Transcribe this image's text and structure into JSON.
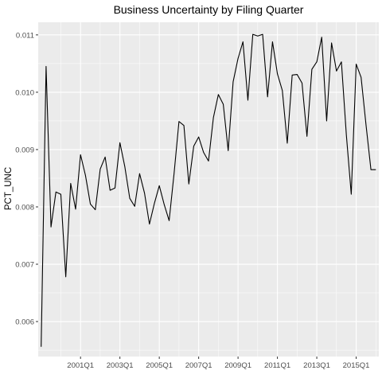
{
  "chart_data": {
    "type": "line",
    "title": "Business Uncertainty by Filing Quarter",
    "xlabel": "",
    "ylabel": "PCT_UNC",
    "x_tick_labels": [
      "2001Q1",
      "2003Q1",
      "2005Q1",
      "2007Q1",
      "2009Q1",
      "2011Q1",
      "2013Q1",
      "2015Q1"
    ],
    "y_ticks": [
      0.006,
      0.007,
      0.008,
      0.009,
      0.01,
      0.011
    ],
    "y_tick_labels": [
      "0.006",
      "0.007",
      "0.008",
      "0.009",
      "0.010",
      "0.011"
    ],
    "ylim": [
      0.00539,
      0.01122
    ],
    "grid": true,
    "legend": "none",
    "colors": {
      "panel": "#ebebeb",
      "grid": "#ffffff",
      "line": "#000000"
    },
    "series": [
      {
        "x": [
          "1999Q1",
          "1999Q2",
          "1999Q3",
          "1999Q4",
          "2000Q1",
          "2000Q2",
          "2000Q3",
          "2000Q4",
          "2001Q1",
          "2001Q2",
          "2001Q3",
          "2001Q4",
          "2002Q1",
          "2002Q2",
          "2002Q3",
          "2002Q4",
          "2003Q1",
          "2003Q2",
          "2003Q3",
          "2003Q4",
          "2004Q1",
          "2004Q2",
          "2004Q3",
          "2004Q4",
          "2005Q1",
          "2005Q2",
          "2005Q3",
          "2005Q4",
          "2006Q1",
          "2006Q2",
          "2006Q3",
          "2006Q4",
          "2007Q1",
          "2007Q2",
          "2007Q3",
          "2007Q4",
          "2008Q1",
          "2008Q2",
          "2008Q3",
          "2008Q4",
          "2009Q1",
          "2009Q2",
          "2009Q3",
          "2009Q4",
          "2010Q1",
          "2010Q2",
          "2010Q3",
          "2010Q4",
          "2011Q1",
          "2011Q2",
          "2011Q3",
          "2011Q4",
          "2012Q1",
          "2012Q2",
          "2012Q3",
          "2012Q4",
          "2013Q1",
          "2013Q2",
          "2013Q3",
          "2013Q4",
          "2014Q1",
          "2014Q2",
          "2014Q3",
          "2014Q4",
          "2015Q1",
          "2015Q2",
          "2015Q3",
          "2015Q4",
          "2016Q1"
        ],
        "values": [
          0.00556,
          0.01045,
          0.00765,
          0.00826,
          0.00822,
          0.00678,
          0.00841,
          0.00796,
          0.00891,
          0.00855,
          0.00805,
          0.00795,
          0.00866,
          0.00887,
          0.00829,
          0.00833,
          0.00912,
          0.0087,
          0.00815,
          0.00801,
          0.00858,
          0.00824,
          0.0077,
          0.00806,
          0.00837,
          0.00804,
          0.00776,
          0.00858,
          0.00949,
          0.00942,
          0.0084,
          0.00906,
          0.00922,
          0.00895,
          0.0088,
          0.00956,
          0.00996,
          0.00979,
          0.00898,
          0.01018,
          0.01059,
          0.01088,
          0.00986,
          0.01101,
          0.01098,
          0.01101,
          0.00992,
          0.01088,
          0.01032,
          0.01003,
          0.00911,
          0.0103,
          0.01031,
          0.01016,
          0.00923,
          0.0104,
          0.01053,
          0.01096,
          0.0095,
          0.01086,
          0.01037,
          0.01053,
          0.00926,
          0.00822,
          0.01049,
          0.01026,
          0.00943,
          0.00865,
          0.00865
        ]
      }
    ]
  }
}
